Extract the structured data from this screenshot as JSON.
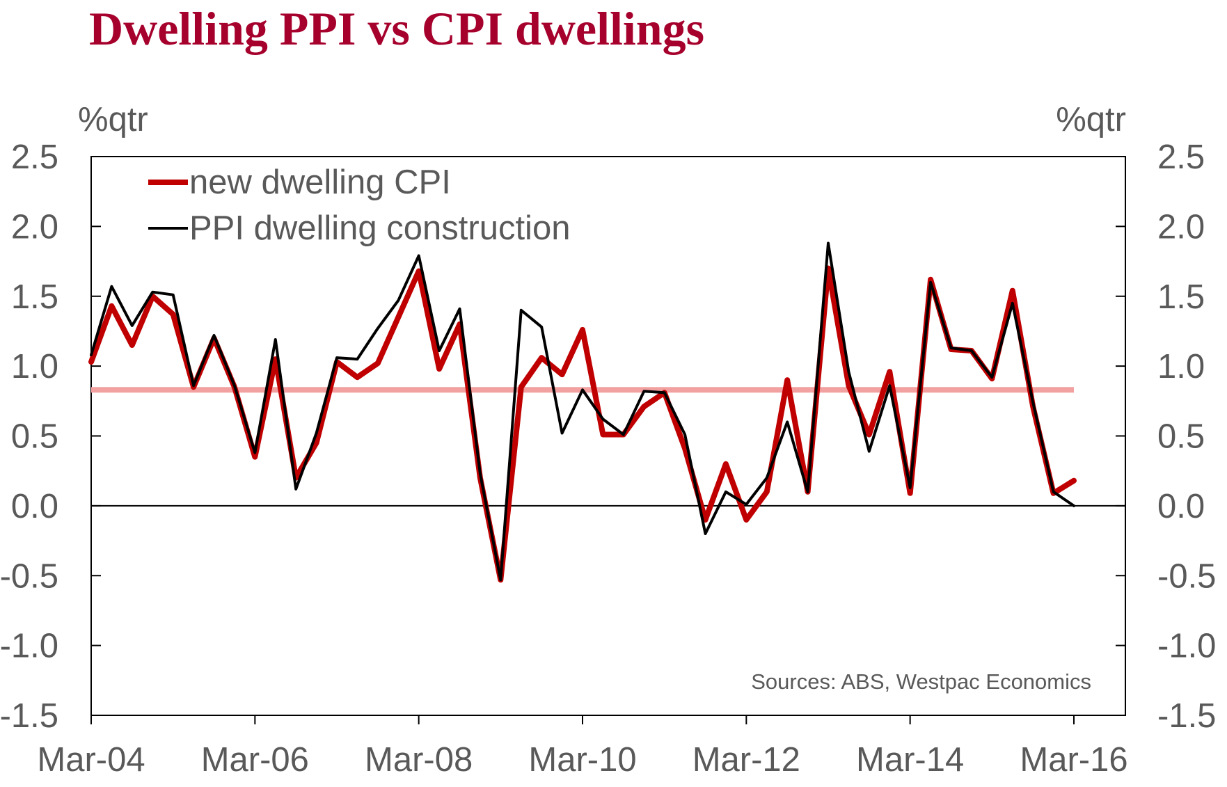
{
  "title": "Dwelling PPI vs CPI dwellings",
  "chart_data": {
    "type": "line",
    "title": "Dwelling PPI vs CPI dwellings",
    "ylabel_left": "%qtr",
    "ylabel_right": "%qtr",
    "ylim": [
      -1.5,
      2.5
    ],
    "yticks": [
      "2.5",
      "2.0",
      "1.5",
      "1.0",
      "0.5",
      "0.0",
      "-0.5",
      "-1.0",
      "-1.5"
    ],
    "ytick_values": [
      2.5,
      2.0,
      1.5,
      1.0,
      0.5,
      0.0,
      -0.5,
      -1.0,
      -1.5
    ],
    "xtick_labels": [
      "Mar-04",
      "Mar-06",
      "Mar-08",
      "Mar-10",
      "Mar-12",
      "Mar-14",
      "Mar-16"
    ],
    "x_start": "Mar-04",
    "x_end": "Mar-16",
    "n_quarters": 49,
    "xtick_every": 8,
    "source": "Sources: ABS, Westpac Economics",
    "series": [
      {
        "name": "new dwelling CPI",
        "color": "#c00000",
        "width": "thick",
        "values": [
          1.03,
          1.43,
          1.15,
          1.5,
          1.37,
          0.85,
          1.2,
          0.85,
          0.35,
          1.05,
          0.2,
          0.45,
          1.03,
          0.92,
          1.02,
          1.35,
          1.68,
          0.98,
          1.3,
          0.2,
          -0.53,
          0.85,
          1.06,
          0.94,
          1.26,
          0.51,
          0.51,
          0.71,
          0.81,
          0.41,
          -0.1,
          0.3,
          -0.1,
          0.1,
          0.9,
          0.1,
          1.7,
          0.86,
          0.51,
          0.96,
          0.09,
          1.62,
          1.12,
          1.11,
          0.91,
          1.54,
          0.71,
          0.09,
          0.18
        ]
      },
      {
        "name": "PPI dwelling construction",
        "color": "#000000",
        "width": "thin",
        "values": [
          1.08,
          1.57,
          1.29,
          1.53,
          1.51,
          0.86,
          1.22,
          0.86,
          0.38,
          1.19,
          0.12,
          0.52,
          1.06,
          1.05,
          1.27,
          1.47,
          1.79,
          1.11,
          1.41,
          0.23,
          -0.53,
          1.4,
          1.28,
          0.52,
          0.83,
          0.62,
          0.51,
          0.82,
          0.81,
          0.51,
          -0.2,
          0.1,
          0.01,
          0.2,
          0.6,
          0.1,
          1.88,
          0.96,
          0.39,
          0.86,
          0.13,
          1.6,
          1.13,
          1.11,
          0.92,
          1.45,
          0.74,
          0.1,
          0.0
        ]
      }
    ],
    "average_line": {
      "value": 0.83,
      "color": "#f2a0a0"
    }
  }
}
